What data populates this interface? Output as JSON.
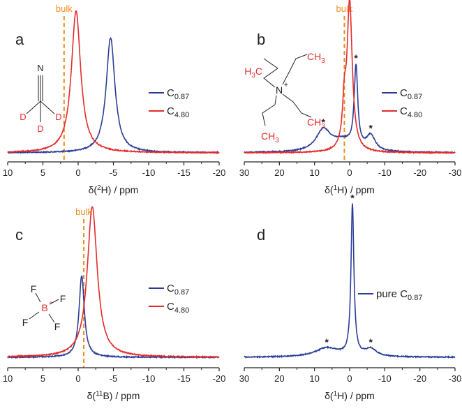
{
  "colors": {
    "blue": "#2b3d97",
    "red": "#e32b2b",
    "orange": "#f08c1e",
    "black": "#222222"
  },
  "panels": [
    {
      "letter": "a",
      "xlabel_pre": "δ(",
      "xlabel_sup": "2",
      "xlabel_post": "H) / ppm",
      "xlim": [
        10,
        -20
      ],
      "xticks": [
        "10",
        "5",
        "0",
        "-5",
        "-10",
        "-15",
        "-20"
      ],
      "bulk": {
        "label": "bulk",
        "x": 2.0
      },
      "legend": [
        {
          "base": "C",
          "sub": "0.87",
          "color": "#2b3d97"
        },
        {
          "base": "C",
          "sub": "4.80",
          "color": "#e32b2b"
        }
      ],
      "molecule": "acetonitrile-d3",
      "molecule_labels": {
        "n": "N",
        "d": "D"
      },
      "asterisk": "*"
    },
    {
      "letter": "b",
      "xlabel_pre": "δ(",
      "xlabel_sup": "1",
      "xlabel_post": "H) / ppm",
      "xlim": [
        30,
        -30
      ],
      "xticks": [
        "30",
        "20",
        "10",
        "0",
        "-10",
        "-20",
        "-30"
      ],
      "bulk": {
        "label": "bulk",
        "x": 1.5
      },
      "legend": [
        {
          "base": "C",
          "sub": "0.87",
          "color": "#2b3d97"
        },
        {
          "base": "C",
          "sub": "4.80",
          "color": "#e32b2b"
        }
      ],
      "molecule": "tetrabutylammonium",
      "molecule_labels": {
        "h3c": "H",
        "h3c_sub": "3",
        "h3c_tail": "C",
        "ch3": "CH",
        "ch3_sub": "3",
        "n": "N",
        "plus": "+"
      },
      "asterisk": "*"
    },
    {
      "letter": "c",
      "xlabel_pre": "δ(",
      "xlabel_sup": "11",
      "xlabel_post": "B) / ppm",
      "xlim": [
        10,
        -20
      ],
      "xticks": [
        "10",
        "5",
        "0",
        "-5",
        "-10",
        "-15",
        "-20"
      ],
      "bulk": {
        "label": "bulk",
        "x": -0.8
      },
      "legend": [
        {
          "base": "C",
          "sub": "0.87",
          "color": "#2b3d97"
        },
        {
          "base": "C",
          "sub": "4.80",
          "color": "#e32b2b"
        }
      ],
      "molecule": "tetrafluoroborate",
      "molecule_labels": {
        "b": "B",
        "minus": "-",
        "f": "F"
      },
      "asterisk": "*"
    },
    {
      "letter": "d",
      "xlabel_pre": "δ(",
      "xlabel_sup": "1",
      "xlabel_post": "H) / ppm",
      "xlim": [
        30,
        -30
      ],
      "xticks": [
        "30",
        "20",
        "10",
        "0",
        "-10",
        "-20",
        "-30"
      ],
      "bulk": null,
      "legend": [
        {
          "base": "pure C",
          "sub": "0.87",
          "color": "#2b3d97"
        }
      ],
      "molecule": null,
      "asterisk": "*"
    }
  ],
  "chart_data": [
    {
      "type": "line",
      "panel": "a",
      "xlabel": "δ(2H) / ppm",
      "xlim": [
        10,
        -20
      ],
      "series": [
        {
          "name": "C0.87",
          "peaks": [
            {
              "x": -4.6,
              "height": 0.77,
              "width": 0.75
            }
          ]
        },
        {
          "name": "C4.80",
          "peaks": [
            {
              "x": 0.3,
              "height": 0.95,
              "width": 0.8
            }
          ]
        }
      ],
      "annotations": [
        {
          "text": "bulk",
          "x": 2.0
        }
      ]
    },
    {
      "type": "line",
      "panel": "b",
      "xlabel": "δ(1H) / ppm",
      "xlim": [
        30,
        -30
      ],
      "series": [
        {
          "name": "C0.87",
          "peaks": [
            {
              "x": -1.8,
              "height": 0.54,
              "width": 0.6
            },
            {
              "x": 7.5,
              "height": 0.14,
              "width": 2.5
            },
            {
              "x": -6.0,
              "height": 0.1,
              "width": 1.5
            },
            {
              "x": 2.0,
              "height": 0.07,
              "width": 4.0
            }
          ]
        },
        {
          "name": "C4.80",
          "peaks": [
            {
              "x": 0.0,
              "height": 1.0,
              "width": 0.9
            },
            {
              "x": 1.5,
              "height": 0.25,
              "width": 0.6
            }
          ]
        }
      ],
      "annotations": [
        {
          "text": "bulk",
          "x": 1.5
        },
        {
          "text": "*",
          "x": 7.5
        },
        {
          "text": "*",
          "x": -1.8
        },
        {
          "text": "*",
          "x": -6.0
        }
      ]
    },
    {
      "type": "line",
      "panel": "c",
      "xlabel": "δ(11B) / ppm",
      "xlim": [
        10,
        -20
      ],
      "series": [
        {
          "name": "C0.87",
          "peaks": [
            {
              "x": -0.5,
              "height": 0.54,
              "width": 0.45
            }
          ]
        },
        {
          "name": "C4.80",
          "peaks": [
            {
              "x": -2.0,
              "height": 1.0,
              "width": 0.85
            }
          ]
        }
      ],
      "annotations": [
        {
          "text": "bulk",
          "x": -0.8
        }
      ]
    },
    {
      "type": "line",
      "panel": "d",
      "xlabel": "δ(1H) / ppm",
      "xlim": [
        30,
        -30
      ],
      "series": [
        {
          "name": "pure C0.87",
          "peaks": [
            {
              "x": -0.8,
              "height": 1.0,
              "width": 0.5
            },
            {
              "x": 6.5,
              "height": 0.06,
              "width": 4.0
            },
            {
              "x": -6.0,
              "height": 0.05,
              "width": 2.0
            }
          ]
        }
      ],
      "annotations": [
        {
          "text": "*",
          "x": -0.8
        },
        {
          "text": "*",
          "x": 6.5
        },
        {
          "text": "*",
          "x": -6.0
        }
      ]
    }
  ]
}
